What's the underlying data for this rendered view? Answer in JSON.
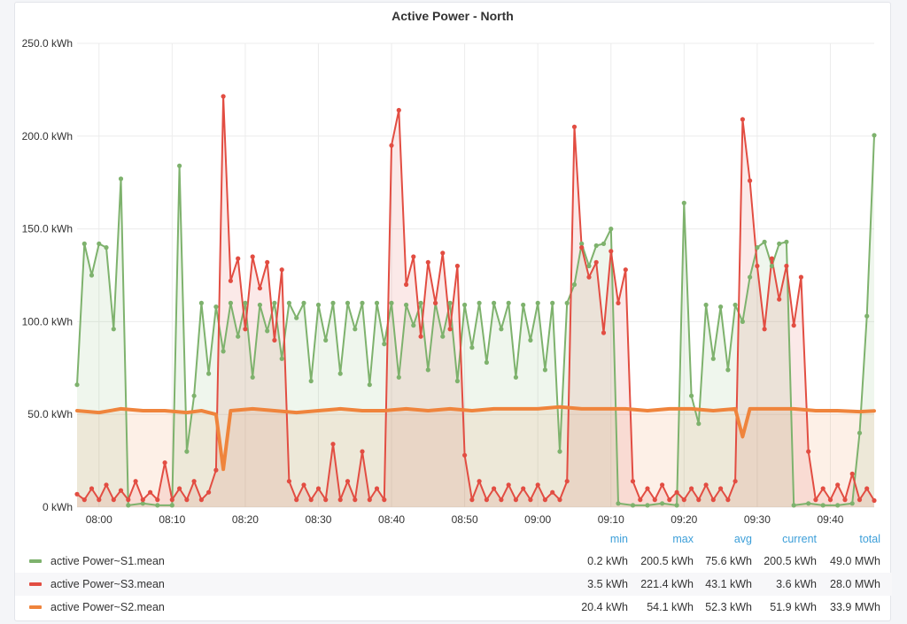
{
  "panel": {
    "title": "Active Power - North"
  },
  "chart_data": {
    "type": "line",
    "title": "Active Power - North",
    "ylim": [
      0,
      250
    ],
    "yticks": [
      "0 kWh",
      "50.0 kWh",
      "100.0 kWh",
      "150.0 kWh",
      "200.0 kWh",
      "250.0 kWh"
    ],
    "ytick_values": [
      0,
      50,
      100,
      150,
      200,
      250
    ],
    "xlim": [
      "07:57",
      "09:46"
    ],
    "xticks": [
      "08:00",
      "08:10",
      "08:20",
      "08:30",
      "08:40",
      "08:50",
      "09:00",
      "09:10",
      "09:20",
      "09:30",
      "09:40"
    ],
    "grid": true,
    "fill": true,
    "legend_position": "bottom",
    "series": [
      {
        "name": "active Power~S1.mean",
        "color": "#7eb26d",
        "points": [
          [
            "07:57",
            66
          ],
          [
            "07:58",
            142
          ],
          [
            "07:59",
            125
          ],
          [
            "08:00",
            142
          ],
          [
            "08:01",
            140
          ],
          [
            "08:02",
            96
          ],
          [
            "08:03",
            177
          ],
          [
            "08:04",
            1
          ],
          [
            "08:06",
            2
          ],
          [
            "08:08",
            1
          ],
          [
            "08:10",
            1
          ],
          [
            "08:11",
            184
          ],
          [
            "08:12",
            30
          ],
          [
            "08:13",
            60
          ],
          [
            "08:14",
            110
          ],
          [
            "08:15",
            72
          ],
          [
            "08:16",
            108
          ],
          [
            "08:17",
            84
          ],
          [
            "08:18",
            110
          ],
          [
            "08:19",
            92
          ],
          [
            "08:20",
            110
          ],
          [
            "08:21",
            70
          ],
          [
            "08:22",
            109
          ],
          [
            "08:23",
            95
          ],
          [
            "08:24",
            110
          ],
          [
            "08:25",
            80
          ],
          [
            "08:26",
            110
          ],
          [
            "08:27",
            102
          ],
          [
            "08:28",
            110
          ],
          [
            "08:29",
            68
          ],
          [
            "08:30",
            109
          ],
          [
            "08:31",
            90
          ],
          [
            "08:32",
            110
          ],
          [
            "08:33",
            72
          ],
          [
            "08:34",
            110
          ],
          [
            "08:35",
            96
          ],
          [
            "08:36",
            110
          ],
          [
            "08:37",
            66
          ],
          [
            "08:38",
            110
          ],
          [
            "08:39",
            88
          ],
          [
            "08:40",
            110
          ],
          [
            "08:41",
            70
          ],
          [
            "08:42",
            109
          ],
          [
            "08:43",
            98
          ],
          [
            "08:44",
            110
          ],
          [
            "08:45",
            74
          ],
          [
            "08:46",
            110
          ],
          [
            "08:47",
            92
          ],
          [
            "08:48",
            110
          ],
          [
            "08:49",
            68
          ],
          [
            "08:50",
            109
          ],
          [
            "08:51",
            86
          ],
          [
            "08:52",
            110
          ],
          [
            "08:53",
            78
          ],
          [
            "08:54",
            110
          ],
          [
            "08:55",
            96
          ],
          [
            "08:56",
            110
          ],
          [
            "08:57",
            70
          ],
          [
            "08:58",
            109
          ],
          [
            "08:59",
            90
          ],
          [
            "09:00",
            110
          ],
          [
            "09:01",
            74
          ],
          [
            "09:02",
            110
          ],
          [
            "09:03",
            30
          ],
          [
            "09:04",
            110
          ],
          [
            "09:05",
            120
          ],
          [
            "09:06",
            142
          ],
          [
            "09:07",
            130
          ],
          [
            "09:08",
            141
          ],
          [
            "09:09",
            142
          ],
          [
            "09:10",
            150
          ],
          [
            "09:11",
            2
          ],
          [
            "09:13",
            1
          ],
          [
            "09:15",
            1
          ],
          [
            "09:17",
            2
          ],
          [
            "09:19",
            1
          ],
          [
            "09:20",
            164
          ],
          [
            "09:21",
            60
          ],
          [
            "09:22",
            45
          ],
          [
            "09:23",
            109
          ],
          [
            "09:24",
            80
          ],
          [
            "09:25",
            108
          ],
          [
            "09:26",
            74
          ],
          [
            "09:27",
            109
          ],
          [
            "09:28",
            100
          ],
          [
            "09:29",
            124
          ],
          [
            "09:30",
            140
          ],
          [
            "09:31",
            143
          ],
          [
            "09:32",
            130
          ],
          [
            "09:33",
            142
          ],
          [
            "09:34",
            143
          ],
          [
            "09:35",
            1
          ],
          [
            "09:37",
            2
          ],
          [
            "09:39",
            1
          ],
          [
            "09:41",
            1
          ],
          [
            "09:43",
            2
          ],
          [
            "09:44",
            40
          ],
          [
            "09:45",
            103
          ],
          [
            "09:46",
            200.5
          ]
        ]
      },
      {
        "name": "active Power~S3.mean",
        "color": "#e24d42",
        "points": [
          [
            "07:57",
            7
          ],
          [
            "07:58",
            4
          ],
          [
            "07:59",
            10
          ],
          [
            "08:00",
            4
          ],
          [
            "08:01",
            12
          ],
          [
            "08:02",
            4
          ],
          [
            "08:03",
            9
          ],
          [
            "08:04",
            4
          ],
          [
            "08:05",
            14
          ],
          [
            "08:06",
            4
          ],
          [
            "08:07",
            8
          ],
          [
            "08:08",
            4
          ],
          [
            "08:09",
            24
          ],
          [
            "08:10",
            4
          ],
          [
            "08:11",
            10
          ],
          [
            "08:12",
            4
          ],
          [
            "08:13",
            14
          ],
          [
            "08:14",
            4
          ],
          [
            "08:15",
            8
          ],
          [
            "08:16",
            20
          ],
          [
            "08:17",
            221.4
          ],
          [
            "08:18",
            122
          ],
          [
            "08:19",
            134
          ],
          [
            "08:20",
            96
          ],
          [
            "08:21",
            135
          ],
          [
            "08:22",
            118
          ],
          [
            "08:23",
            132
          ],
          [
            "08:24",
            90
          ],
          [
            "08:25",
            128
          ],
          [
            "08:26",
            14
          ],
          [
            "08:27",
            4
          ],
          [
            "08:28",
            12
          ],
          [
            "08:29",
            4
          ],
          [
            "08:30",
            10
          ],
          [
            "08:31",
            4
          ],
          [
            "08:32",
            34
          ],
          [
            "08:33",
            4
          ],
          [
            "08:34",
            14
          ],
          [
            "08:35",
            4
          ],
          [
            "08:36",
            30
          ],
          [
            "08:37",
            4
          ],
          [
            "08:38",
            10
          ],
          [
            "08:39",
            4
          ],
          [
            "08:40",
            195
          ],
          [
            "08:41",
            214
          ],
          [
            "08:42",
            120
          ],
          [
            "08:43",
            135
          ],
          [
            "08:44",
            92
          ],
          [
            "08:45",
            132
          ],
          [
            "08:46",
            110
          ],
          [
            "08:47",
            137
          ],
          [
            "08:48",
            96
          ],
          [
            "08:49",
            130
          ],
          [
            "08:50",
            28
          ],
          [
            "08:51",
            4
          ],
          [
            "08:52",
            14
          ],
          [
            "08:53",
            4
          ],
          [
            "08:54",
            10
          ],
          [
            "08:55",
            4
          ],
          [
            "08:56",
            12
          ],
          [
            "08:57",
            4
          ],
          [
            "08:58",
            10
          ],
          [
            "08:59",
            4
          ],
          [
            "09:00",
            12
          ],
          [
            "09:01",
            4
          ],
          [
            "09:02",
            8
          ],
          [
            "09:03",
            4
          ],
          [
            "09:04",
            14
          ],
          [
            "09:05",
            205
          ],
          [
            "09:06",
            140
          ],
          [
            "09:07",
            124
          ],
          [
            "09:08",
            132
          ],
          [
            "09:09",
            94
          ],
          [
            "09:10",
            138
          ],
          [
            "09:11",
            110
          ],
          [
            "09:12",
            128
          ],
          [
            "09:13",
            14
          ],
          [
            "09:14",
            4
          ],
          [
            "09:15",
            10
          ],
          [
            "09:16",
            4
          ],
          [
            "09:17",
            12
          ],
          [
            "09:18",
            4
          ],
          [
            "09:19",
            8
          ],
          [
            "09:20",
            4
          ],
          [
            "09:21",
            10
          ],
          [
            "09:22",
            4
          ],
          [
            "09:23",
            12
          ],
          [
            "09:24",
            4
          ],
          [
            "09:25",
            10
          ],
          [
            "09:26",
            4
          ],
          [
            "09:27",
            14
          ],
          [
            "09:28",
            209
          ],
          [
            "09:29",
            176
          ],
          [
            "09:30",
            130
          ],
          [
            "09:31",
            96
          ],
          [
            "09:32",
            134
          ],
          [
            "09:33",
            112
          ],
          [
            "09:34",
            130
          ],
          [
            "09:35",
            98
          ],
          [
            "09:36",
            124
          ],
          [
            "09:37",
            30
          ],
          [
            "09:38",
            4
          ],
          [
            "09:39",
            10
          ],
          [
            "09:40",
            4
          ],
          [
            "09:41",
            12
          ],
          [
            "09:42",
            4
          ],
          [
            "09:43",
            18
          ],
          [
            "09:44",
            4
          ],
          [
            "09:45",
            10
          ],
          [
            "09:46",
            3.6
          ]
        ]
      },
      {
        "name": "active Power~S2.mean",
        "color": "#ef843c",
        "points": [
          [
            "07:57",
            52
          ],
          [
            "08:00",
            51
          ],
          [
            "08:03",
            53
          ],
          [
            "08:06",
            52
          ],
          [
            "08:09",
            52
          ],
          [
            "08:12",
            51
          ],
          [
            "08:14",
            52
          ],
          [
            "08:16",
            50
          ],
          [
            "08:17",
            20.4
          ],
          [
            "08:18",
            52
          ],
          [
            "08:21",
            53
          ],
          [
            "08:24",
            52
          ],
          [
            "08:27",
            51
          ],
          [
            "08:30",
            52
          ],
          [
            "08:33",
            53
          ],
          [
            "08:36",
            52
          ],
          [
            "08:39",
            52
          ],
          [
            "08:42",
            53
          ],
          [
            "08:45",
            52
          ],
          [
            "08:48",
            53
          ],
          [
            "08:51",
            52
          ],
          [
            "08:54",
            53
          ],
          [
            "08:57",
            53
          ],
          [
            "09:00",
            53
          ],
          [
            "09:03",
            54
          ],
          [
            "09:06",
            53
          ],
          [
            "09:09",
            53
          ],
          [
            "09:12",
            53
          ],
          [
            "09:15",
            52
          ],
          [
            "09:18",
            53
          ],
          [
            "09:21",
            53
          ],
          [
            "09:24",
            52
          ],
          [
            "09:27",
            53
          ],
          [
            "09:28",
            38
          ],
          [
            "09:29",
            53
          ],
          [
            "09:32",
            53
          ],
          [
            "09:35",
            53
          ],
          [
            "09:38",
            52
          ],
          [
            "09:41",
            52
          ],
          [
            "09:44",
            51.5
          ],
          [
            "09:46",
            51.9
          ]
        ]
      }
    ]
  },
  "legend": {
    "headers": {
      "min": "min",
      "max": "max",
      "avg": "avg",
      "current": "current",
      "total": "total"
    },
    "rows": [
      {
        "name": "active Power~S1.mean",
        "color": "#7eb26d",
        "min": "0.2 kWh",
        "max": "200.5 kWh",
        "avg": "75.6 kWh",
        "current": "200.5 kWh",
        "total": "49.0 MWh"
      },
      {
        "name": "active Power~S3.mean",
        "color": "#e24d42",
        "min": "3.5 kWh",
        "max": "221.4 kWh",
        "avg": "43.1 kWh",
        "current": "3.6 kWh",
        "total": "28.0 MWh"
      },
      {
        "name": "active Power~S2.mean",
        "color": "#ef843c",
        "min": "20.4 kWh",
        "max": "54.1 kWh",
        "avg": "52.3 kWh",
        "current": "51.9 kWh",
        "total": "33.9 MWh"
      }
    ]
  }
}
